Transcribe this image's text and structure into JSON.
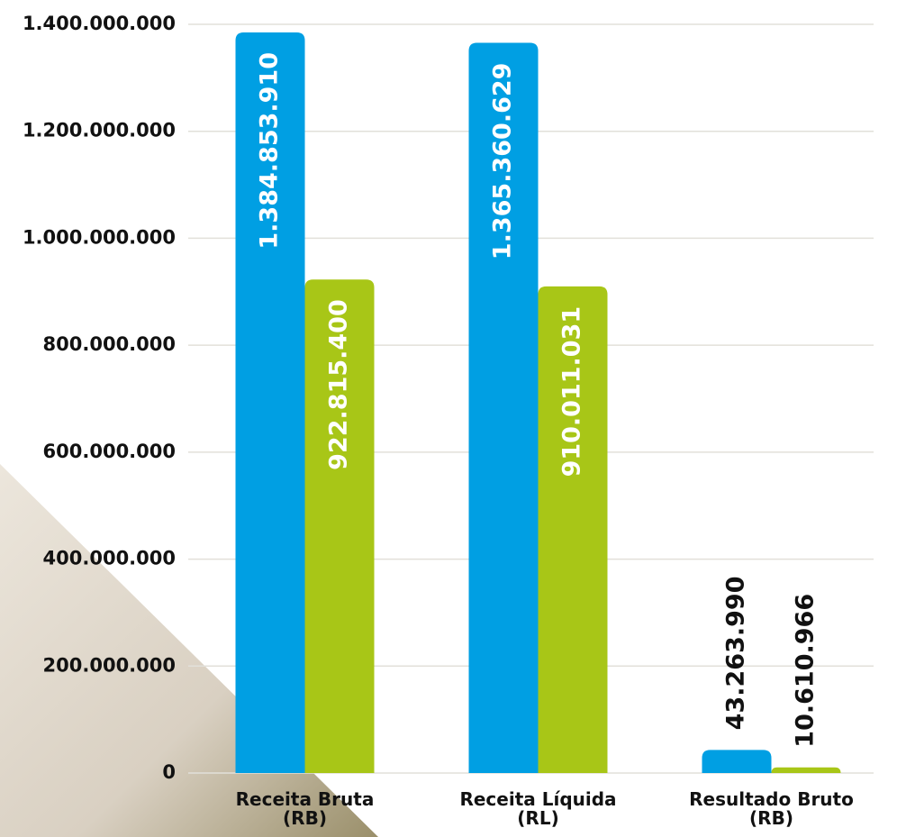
{
  "chart_data": {
    "type": "bar",
    "categories": [
      "Receita Bruta (RB)",
      "Receita Líquida (RL)",
      "Resultado Bruto (RB)"
    ],
    "series": [
      {
        "color": "#009fe3",
        "values": [
          1384853910,
          1365360629,
          43263990
        ],
        "value_labels": [
          "1.384.853.910",
          "1.365.360.629",
          "43.263.990"
        ]
      },
      {
        "color": "#a8c617",
        "values": [
          922815400,
          910011031,
          10610966
        ],
        "value_labels": [
          "922.815.400",
          "910.011.031",
          "10.610.966"
        ]
      }
    ],
    "ylim": [
      0,
      1400000000
    ],
    "yticks": [
      0,
      {
        "value": 200000000,
        "label": "200.000.000"
      },
      {
        "value": 400000000,
        "label": "400.000.000"
      },
      {
        "value": 600000000,
        "label": "600.000.000"
      },
      {
        "value": 800000000,
        "label": "800.000.000"
      },
      {
        "value": 1000000000,
        "label": "1.000.000.000"
      },
      {
        "value": 1200000000,
        "label": "1.200.000.000"
      },
      {
        "value": 1400000000,
        "label": "1.400.000.000"
      }
    ],
    "grid": true
  }
}
